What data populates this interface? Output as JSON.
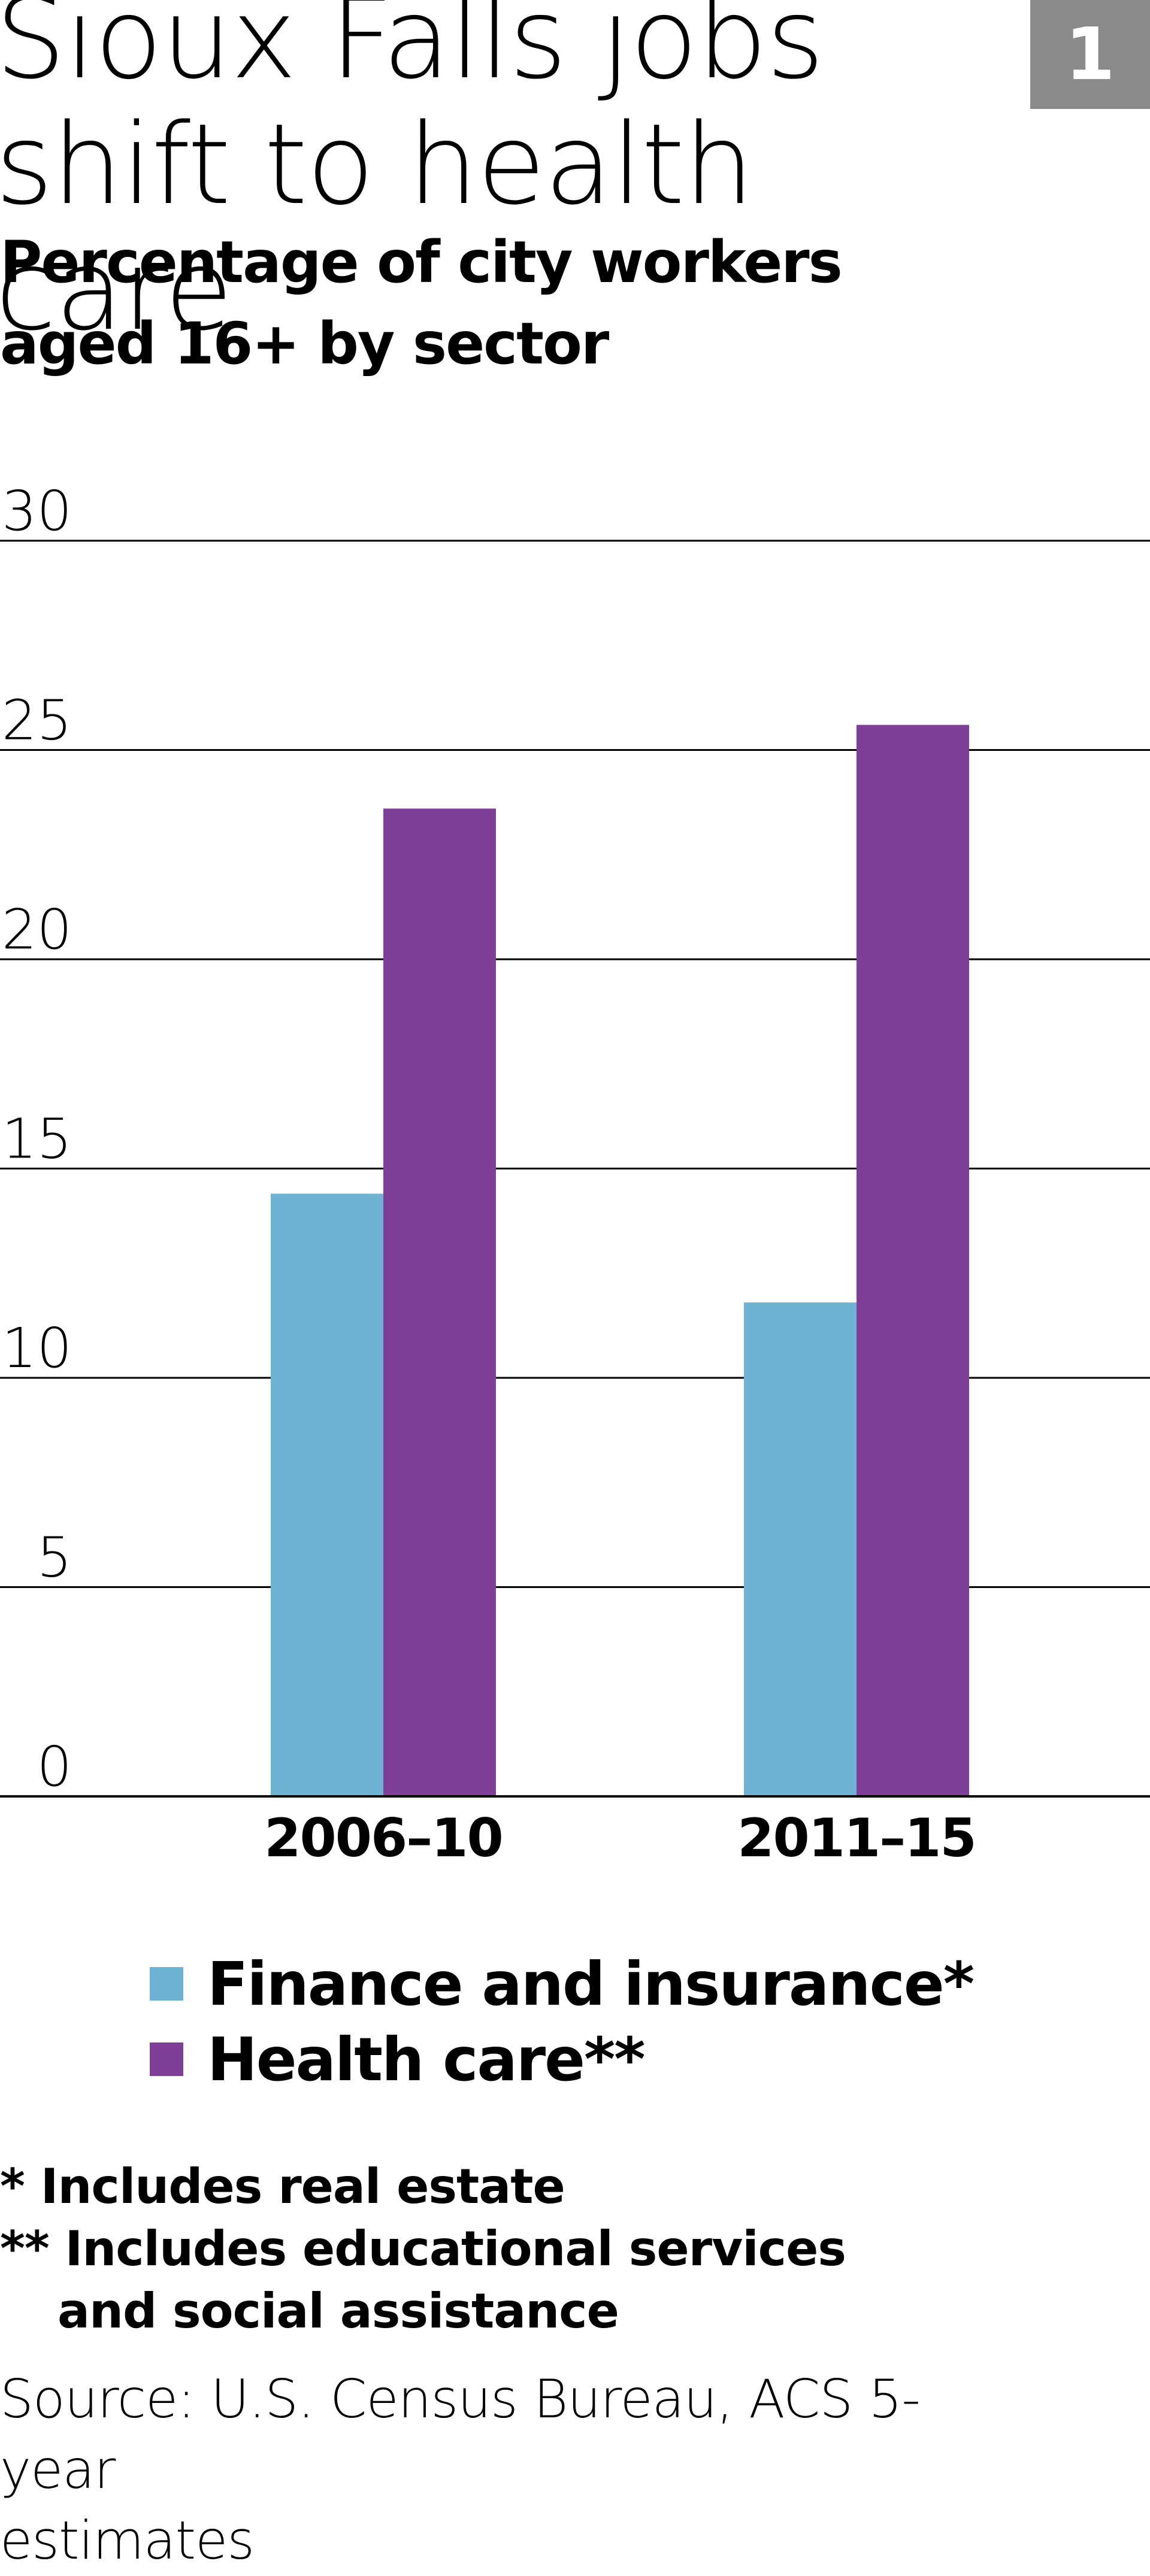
{
  "header": {
    "title_line1": "Sioux Falls jobs",
    "title_line2": "shift to health care",
    "badge": "1",
    "subtitle_line1": "Percentage of city workers",
    "subtitle_line2": "aged 16+ by sector"
  },
  "chart_data": {
    "type": "bar",
    "title": "Sioux Falls jobs shift to health care",
    "subtitle": "Percentage of city workers aged 16+ by sector",
    "categories": [
      "2006–10",
      "2011–15"
    ],
    "series": [
      {
        "name": "Finance and insurance*",
        "values": [
          14.4,
          11.8
        ],
        "color": "#6eb3d3"
      },
      {
        "name": "Health care**",
        "values": [
          23.6,
          25.6
        ],
        "color": "#7f3f98"
      }
    ],
    "ylim": [
      0,
      30
    ],
    "yticks": [
      "0",
      "5",
      "10",
      "15",
      "20",
      "25",
      "30"
    ],
    "grid": true,
    "legend": "bottom"
  },
  "legend": {
    "items": [
      {
        "label": "Finance and insurance*",
        "color": "#6eb3d3"
      },
      {
        "label": "Health care**",
        "color": "#7f3f98"
      }
    ]
  },
  "notes": {
    "note1": "* Includes real estate",
    "note2_line1": "** Includes educational services",
    "note2_line2": "and social assistance"
  },
  "source": {
    "line1": "Source: U.S. Census Bureau, ACS 5-year",
    "line2": "estimates"
  }
}
